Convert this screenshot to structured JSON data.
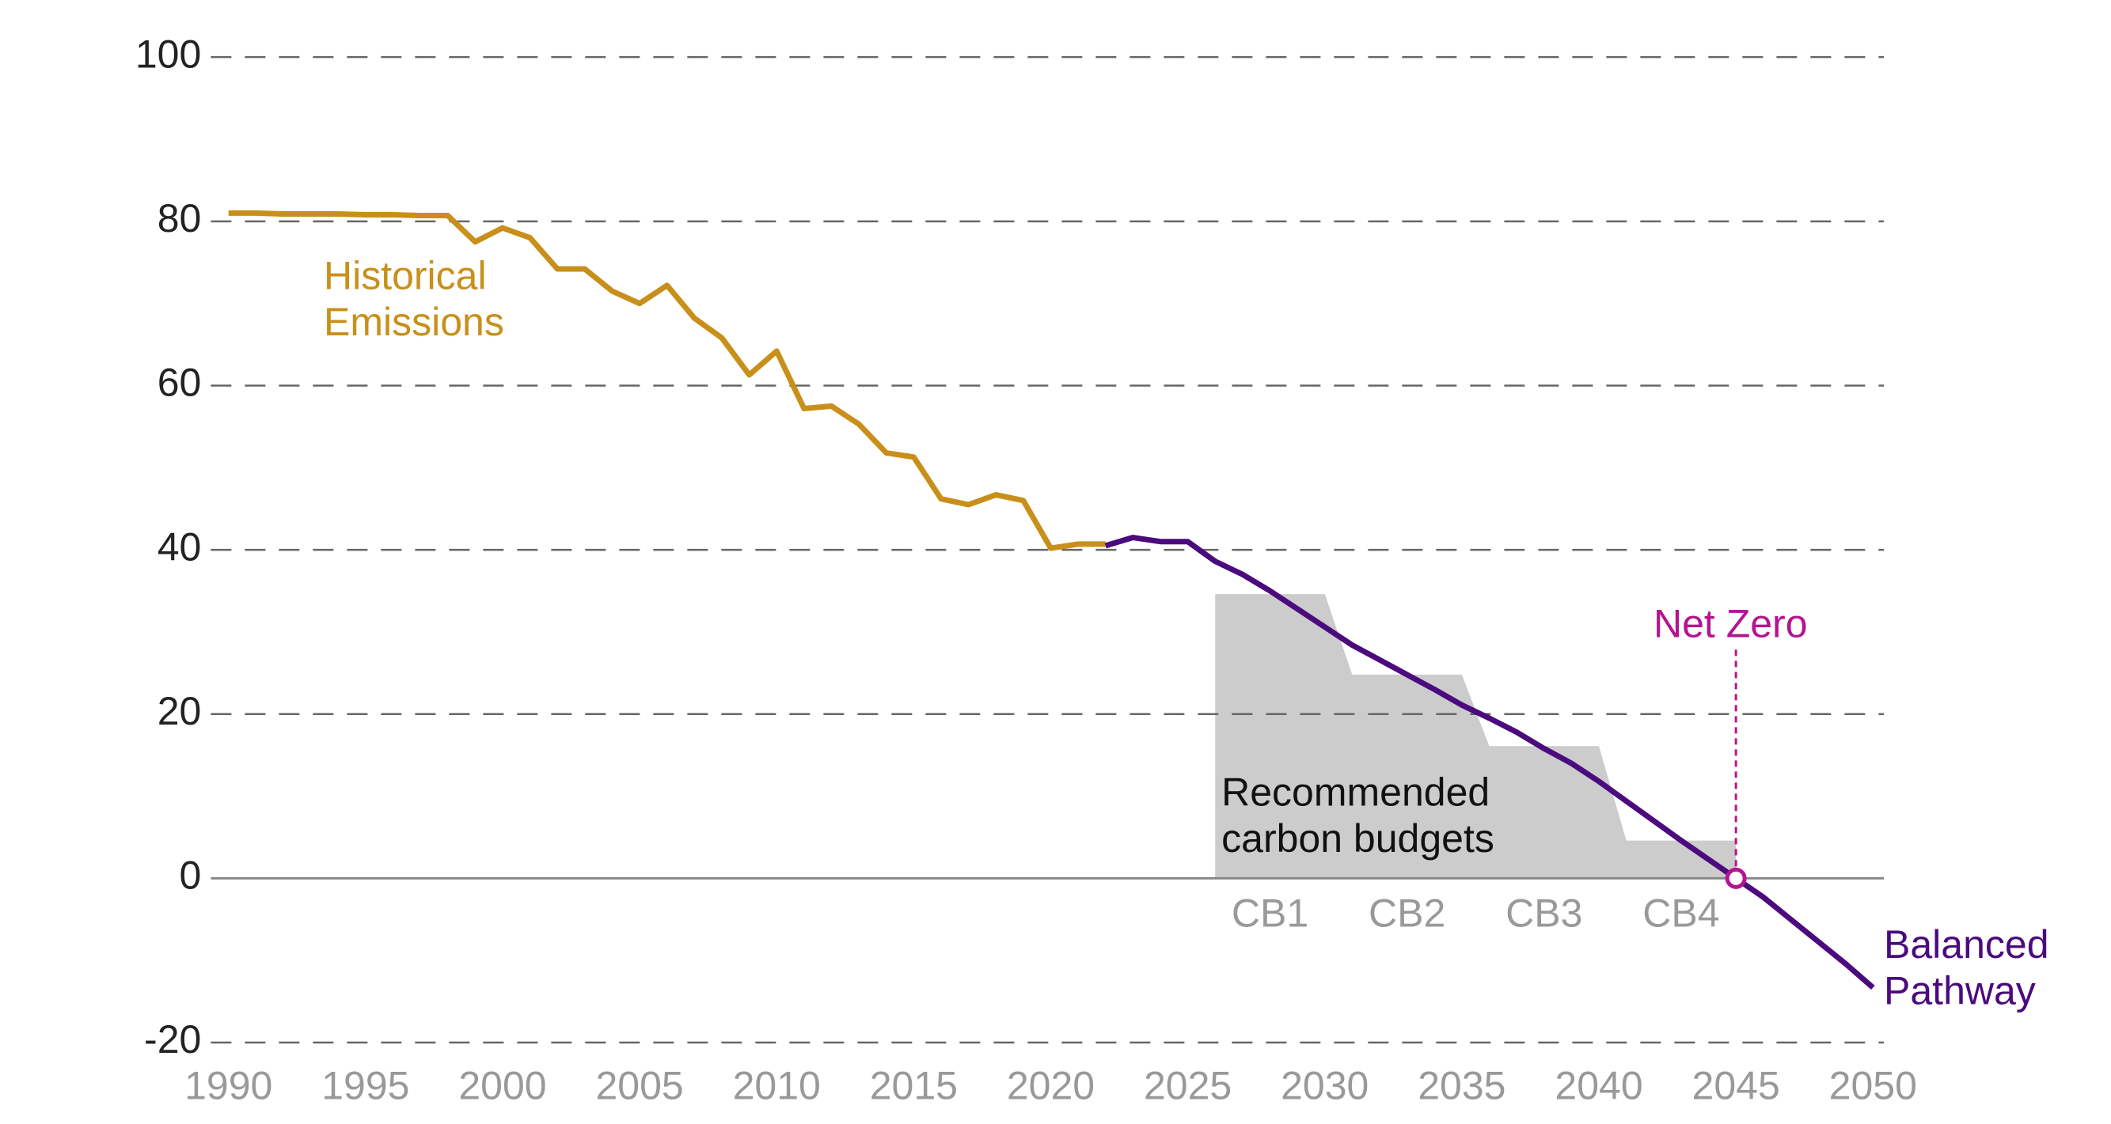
{
  "chart_data": {
    "type": "line",
    "xlim": [
      1990,
      2050
    ],
    "xticks": [
      1990,
      1995,
      2000,
      2005,
      2010,
      2015,
      2020,
      2025,
      2030,
      2035,
      2040,
      2045,
      2050
    ],
    "ylim": [
      -20,
      100
    ],
    "yticks": [
      -20,
      0,
      20,
      40,
      60,
      80,
      100
    ],
    "grid": true,
    "series": [
      {
        "name": [
          "Historical",
          "Emissions"
        ],
        "color": "#c8901a",
        "x": [
          1990,
          1991,
          1992,
          1993,
          1994,
          1995,
          1996,
          1997,
          1998,
          1999,
          2000,
          2001,
          2002,
          2003,
          2004,
          2005,
          2006,
          2007,
          2008,
          2009,
          2010,
          2011,
          2012,
          2013,
          2014,
          2015,
          2016,
          2017,
          2018,
          2019,
          2020,
          2021,
          2022
        ],
        "values": [
          81.0,
          81.0,
          80.9,
          80.9,
          80.9,
          80.8,
          80.8,
          80.7,
          80.7,
          77.5,
          79.2,
          78.0,
          74.2,
          74.2,
          71.5,
          70.0,
          72.2,
          68.2,
          65.8,
          61.3,
          64.2,
          57.2,
          57.5,
          55.3,
          51.8,
          51.3,
          46.2,
          45.5,
          46.7,
          46.0,
          40.2,
          40.7,
          40.7
        ]
      },
      {
        "name": [
          "Balanced",
          "Pathway"
        ],
        "color": "#4b0a7d",
        "x": [
          2022,
          2023,
          2024,
          2025,
          2026,
          2027,
          2028,
          2029,
          2030,
          2031,
          2032,
          2033,
          2034,
          2035,
          2036,
          2037,
          2038,
          2039,
          2040,
          2041,
          2042,
          2043,
          2044,
          2045,
          2046,
          2047,
          2048,
          2049,
          2050
        ],
        "values": [
          40.5,
          41.5,
          41.0,
          41.0,
          38.6,
          37.0,
          35.0,
          32.8,
          30.6,
          28.4,
          26.6,
          24.8,
          23.0,
          21.1,
          19.5,
          17.8,
          15.8,
          14.0,
          11.8,
          9.4,
          7.0,
          4.6,
          2.3,
          0,
          -2.3,
          -5.0,
          -7.7,
          -10.4,
          -13.3
        ]
      }
    ],
    "budgets": {
      "label": [
        "Recommended",
        "carbon budgets"
      ],
      "color": "#cccccc",
      "names": [
        "CB1",
        "CB2",
        "CB3",
        "CB4"
      ],
      "x": [
        2026,
        2030,
        2031,
        2035,
        2036,
        2040,
        2041,
        2045
      ],
      "values": [
        34.6,
        34.6,
        24.8,
        24.8,
        16.1,
        16.1,
        4.6,
        4.6
      ]
    },
    "net_zero": {
      "label": "Net Zero",
      "x": 2045,
      "y": 0,
      "color": "#b5148f"
    }
  }
}
